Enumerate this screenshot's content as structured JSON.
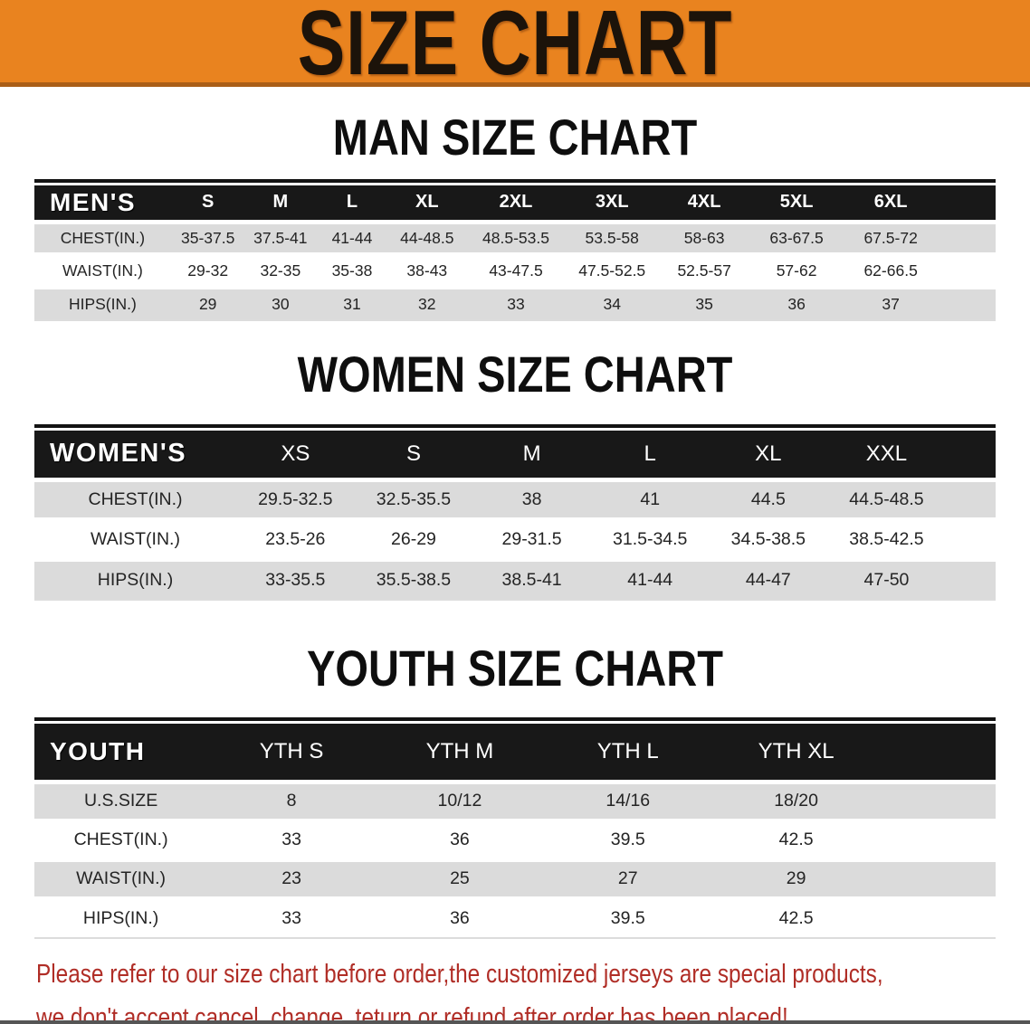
{
  "banner": {
    "title": "SIZE CHART"
  },
  "colors": {
    "banner_orange": "#e9831f",
    "banner_orange_dark": "#aa5e17",
    "header_band_black": "#181818",
    "row_gray": "#dbdbdb",
    "row_white": "#ffffff",
    "disclaimer_red": "#b02d26"
  },
  "sections": [
    {
      "title": "MAN SIZE CHART",
      "table": {
        "header_label": "MEN'S",
        "columns": [
          "S",
          "M",
          "L",
          "XL",
          "2XL",
          "3XL",
          "4XL",
          "5XL",
          "6XL"
        ],
        "rows": [
          {
            "label": "CHEST(IN.)",
            "values": [
              "35-37.5",
              "37.5-41",
              "41-44",
              "44-48.5",
              "48.5-53.5",
              "53.5-58",
              "58-63",
              "63-67.5",
              "67.5-72"
            ]
          },
          {
            "label": "WAIST(IN.)",
            "values": [
              "29-32",
              "32-35",
              "35-38",
              "38-43",
              "43-47.5",
              "47.5-52.5",
              "52.5-57",
              "57-62",
              "62-66.5"
            ]
          },
          {
            "label": "HIPS(IN.)",
            "values": [
              "29",
              "30",
              "31",
              "32",
              "33",
              "34",
              "35",
              "36",
              "37"
            ]
          }
        ]
      }
    },
    {
      "title": "WOMEN SIZE CHART",
      "table": {
        "header_label": "WOMEN'S",
        "columns": [
          "XS",
          "S",
          "M",
          "L",
          "XL",
          "XXL"
        ],
        "rows": [
          {
            "label": "CHEST(IN.)",
            "values": [
              "29.5-32.5",
              "32.5-35.5",
              "38",
              "41",
              "44.5",
              "44.5-48.5"
            ]
          },
          {
            "label": "WAIST(IN.)",
            "values": [
              "23.5-26",
              "26-29",
              "29-31.5",
              "31.5-34.5",
              "34.5-38.5",
              "38.5-42.5"
            ]
          },
          {
            "label": "HIPS(IN.)",
            "values": [
              "33-35.5",
              "35.5-38.5",
              "38.5-41",
              "41-44",
              "44-47",
              "47-50"
            ]
          }
        ]
      }
    },
    {
      "title": "YOUTH SIZE CHART",
      "table": {
        "header_label": "YOUTH",
        "columns": [
          "YTH S",
          "YTH M",
          "YTH L",
          "YTH XL"
        ],
        "rows": [
          {
            "label": "U.S.SIZE",
            "values": [
              "8",
              "10/12",
              "14/16",
              "18/20"
            ]
          },
          {
            "label": "CHEST(IN.)",
            "values": [
              "33",
              "36",
              "39.5",
              "42.5"
            ]
          },
          {
            "label": "WAIST(IN.)",
            "values": [
              "23",
              "25",
              "27",
              "29"
            ]
          },
          {
            "label": "HIPS(IN.)",
            "values": [
              "33",
              "36",
              "39.5",
              "42.5"
            ]
          }
        ]
      }
    }
  ],
  "disclaimer": {
    "line1": "Please refer to our size chart before order,the customized jerseys are special products,",
    "line2": "we don't accept cancel, change, teturn or refund after order has been placed!"
  }
}
